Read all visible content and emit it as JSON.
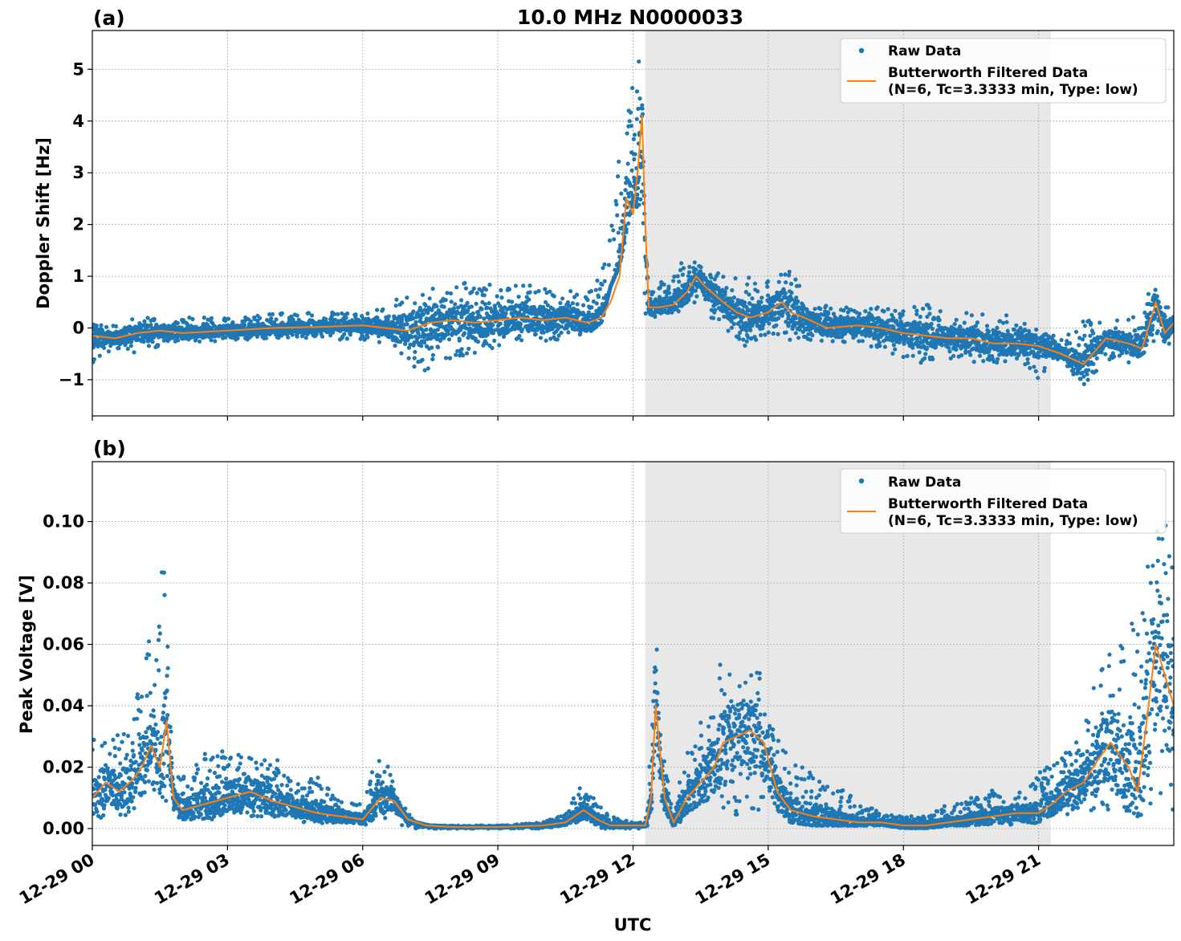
{
  "figure_title": "10.0 MHz N0000033",
  "xlabel": "UTC",
  "colors": {
    "raw": "#1f77b4",
    "filtered": "#ff7f0e",
    "night_shade": "#e8e8e8",
    "grid": "#b0b0b0"
  },
  "chart_data": [
    {
      "type": "scatter",
      "panel_label": "(a)",
      "title": "10.0 MHz N0000033",
      "xlabel": "",
      "ylabel": "Doppler Shift [Hz]",
      "xlim": [
        0,
        24
      ],
      "ylim": [
        -1.7,
        5.75
      ],
      "yticks": [
        -1,
        0,
        1,
        2,
        3,
        4,
        5
      ],
      "ytick_labels": [
        "−1",
        "0",
        "1",
        "2",
        "3",
        "4",
        "5"
      ],
      "x_unit": "hours since 12-29 00 UTC",
      "shaded_region": [
        12.27,
        21.27
      ],
      "grid": true,
      "legend": {
        "placement": "upper right",
        "raw_label": "Raw Data",
        "filtered_label_line1": "Butterworth Filtered Data",
        "filtered_label_line2": "(N=6, Tc=3.3333 min, Type: low)"
      },
      "series": [
        {
          "name": "Raw Data",
          "style": "points",
          "envelope_x": [
            0,
            0.5,
            1,
            1.5,
            2,
            3,
            4,
            5,
            6,
            6.5,
            7,
            7.2,
            7.5,
            8,
            8.5,
            9,
            9.5,
            10,
            10.5,
            11,
            11.3,
            11.5,
            11.7,
            11.9,
            12.0,
            12.1,
            12.2,
            12.27,
            12.35,
            12.5,
            12.8,
            13.0,
            13.3,
            13.6,
            14.0,
            14.5,
            15.0,
            15.5,
            16,
            17,
            18,
            18.5,
            19,
            20,
            20.5,
            21,
            21.5,
            22,
            22.5,
            23,
            23.3,
            23.6,
            24
          ],
          "envelope_lo": [
            -0.7,
            -0.4,
            -0.5,
            -0.35,
            -0.3,
            -0.25,
            -0.2,
            -0.2,
            -0.25,
            -0.3,
            -0.7,
            -0.9,
            -0.8,
            -0.6,
            -0.5,
            -0.4,
            -0.3,
            -0.3,
            -0.2,
            -0.1,
            0.1,
            0.8,
            1.2,
            2.0,
            2.5,
            2.3,
            1.0,
            0.2,
            0.2,
            0.2,
            0.3,
            0.3,
            0.5,
            0.3,
            0.0,
            -0.4,
            -0.1,
            -0.3,
            -0.3,
            -0.3,
            -0.6,
            -0.7,
            -0.6,
            -0.7,
            -0.8,
            -1.0,
            -0.6,
            -1.2,
            -0.6,
            -0.7,
            -0.5,
            -0.3,
            -0.4
          ],
          "envelope_hi": [
            0.1,
            0.1,
            0.2,
            0.2,
            0.2,
            0.2,
            0.3,
            0.3,
            0.3,
            0.4,
            0.75,
            0.8,
            0.75,
            0.85,
            0.9,
            0.9,
            0.85,
            0.8,
            0.7,
            0.75,
            1.0,
            2.0,
            3.5,
            4.2,
            5.0,
            5.3,
            4.8,
            1.4,
            1.0,
            0.8,
            1.0,
            1.3,
            1.4,
            1.2,
            1.0,
            1.0,
            0.9,
            1.2,
            0.5,
            0.4,
            0.4,
            0.5,
            0.3,
            0.3,
            0.2,
            0.0,
            -0.2,
            0.2,
            0.1,
            0.2,
            0.6,
            0.9,
            0.3
          ]
        },
        {
          "name": "Butterworth Filtered Data",
          "style": "line",
          "x": [
            0,
            0.5,
            1,
            1.5,
            2,
            3,
            4,
            5,
            6,
            6.5,
            7,
            7.5,
            8,
            8.5,
            9,
            9.5,
            10,
            10.5,
            11,
            11.3,
            11.5,
            11.7,
            11.85,
            12.0,
            12.1,
            12.2,
            12.27,
            12.35,
            12.6,
            12.9,
            13.2,
            13.4,
            13.6,
            14.0,
            14.3,
            14.6,
            15.0,
            15.3,
            15.5,
            15.8,
            16.3,
            17,
            17.5,
            18,
            18.5,
            19,
            19.5,
            20,
            20.5,
            21,
            21.5,
            22,
            22.5,
            23,
            23.3,
            23.6,
            23.8,
            24
          ],
          "y": [
            -0.15,
            -0.2,
            -0.1,
            -0.05,
            -0.1,
            -0.05,
            0.0,
            0.02,
            0.05,
            0.0,
            -0.05,
            0.1,
            0.15,
            0.1,
            0.15,
            0.2,
            0.15,
            0.2,
            0.1,
            0.2,
            0.5,
            1.0,
            2.5,
            2.2,
            3.0,
            4.1,
            2.0,
            0.4,
            0.4,
            0.45,
            0.7,
            1.0,
            0.8,
            0.5,
            0.3,
            0.2,
            0.3,
            0.5,
            0.3,
            0.2,
            0.0,
            0.05,
            0.0,
            -0.1,
            -0.15,
            -0.2,
            -0.2,
            -0.3,
            -0.3,
            -0.35,
            -0.5,
            -0.7,
            -0.2,
            -0.3,
            -0.4,
            0.5,
            -0.1,
            0.1
          ]
        }
      ]
    },
    {
      "type": "scatter",
      "panel_label": "(b)",
      "title": "",
      "xlabel": "UTC",
      "ylabel": "Peak Voltage [V]",
      "xlim": [
        0,
        24
      ],
      "ylim": [
        -0.0055,
        0.1195
      ],
      "yticks": [
        0.0,
        0.02,
        0.04,
        0.06,
        0.08,
        0.1
      ],
      "ytick_labels": [
        "0.00",
        "0.02",
        "0.04",
        "0.06",
        "0.08",
        "0.10"
      ],
      "xticks": [
        0,
        3,
        6,
        9,
        12,
        15,
        18,
        21
      ],
      "xtick_labels": [
        "12-29 00",
        "12-29 03",
        "12-29 06",
        "12-29 09",
        "12-29 12",
        "12-29 15",
        "12-29 18",
        "12-29 21"
      ],
      "x_unit": "hours since 12-29 00 UTC",
      "shaded_region": [
        12.27,
        21.27
      ],
      "grid": true,
      "legend": {
        "placement": "upper right",
        "raw_label": "Raw Data",
        "filtered_label_line1": "Butterworth Filtered Data",
        "filtered_label_line2": "(N=6, Tc=3.3333 min, Type: low)"
      },
      "series": [
        {
          "name": "Raw Data",
          "style": "points",
          "envelope_x": [
            0,
            0.4,
            0.8,
            1.0,
            1.3,
            1.6,
            1.8,
            2.0,
            2.5,
            3.0,
            3.5,
            4.0,
            4.5,
            5.0,
            5.5,
            6.0,
            6.3,
            6.5,
            6.8,
            7.2,
            7.5,
            8,
            9,
            10,
            10.5,
            10.8,
            11.0,
            11.5,
            12.0,
            12.27,
            12.4,
            12.5,
            12.7,
            12.9,
            13.2,
            13.5,
            13.8,
            14.0,
            14.3,
            14.6,
            14.9,
            15.2,
            15.5,
            16,
            16.5,
            17,
            17.5,
            18,
            18.5,
            19,
            19.5,
            20,
            20.5,
            21,
            21.3,
            21.6,
            22,
            22.3,
            22.6,
            23.0,
            23.2,
            23.5,
            23.8,
            24
          ],
          "envelope_lo": [
            0.003,
            0.004,
            0.004,
            0.008,
            0.012,
            0.01,
            0.004,
            0.003,
            0.003,
            0.003,
            0.003,
            0.002,
            0.002,
            0.002,
            0.001,
            0.001,
            0.002,
            0.003,
            0.001,
            0.0,
            0.0,
            0.0,
            0.0,
            0.0,
            0.001,
            0.001,
            0.0,
            0.0,
            0.0,
            0.0,
            0.002,
            0.004,
            0.001,
            0.0,
            0.002,
            0.004,
            0.003,
            0.005,
            0.004,
            0.006,
            0.005,
            0.003,
            0.002,
            0.001,
            0.001,
            0.001,
            0.001,
            0.0,
            0.0,
            0.001,
            0.001,
            0.001,
            0.001,
            0.002,
            0.003,
            0.004,
            0.005,
            0.006,
            0.004,
            0.003,
            0.004,
            0.006,
            0.008,
            0.004
          ],
          "envelope_hi": [
            0.031,
            0.03,
            0.035,
            0.045,
            0.065,
            0.089,
            0.02,
            0.018,
            0.025,
            0.027,
            0.026,
            0.024,
            0.016,
            0.017,
            0.01,
            0.008,
            0.024,
            0.023,
            0.01,
            0.002,
            0.001,
            0.001,
            0.001,
            0.002,
            0.005,
            0.014,
            0.012,
            0.004,
            0.002,
            0.002,
            0.04,
            0.071,
            0.02,
            0.008,
            0.025,
            0.035,
            0.048,
            0.058,
            0.052,
            0.052,
            0.054,
            0.03,
            0.022,
            0.02,
            0.014,
            0.009,
            0.005,
            0.004,
            0.004,
            0.008,
            0.01,
            0.013,
            0.012,
            0.018,
            0.022,
            0.025,
            0.035,
            0.05,
            0.06,
            0.065,
            0.075,
            0.1,
            0.114,
            0.1
          ]
        },
        {
          "name": "Butterworth Filtered Data",
          "style": "line",
          "x": [
            0,
            0.3,
            0.6,
            0.9,
            1.1,
            1.3,
            1.5,
            1.65,
            1.8,
            2.0,
            2.5,
            3.0,
            3.5,
            4.0,
            4.5,
            5.0,
            5.5,
            6.0,
            6.4,
            6.7,
            7.0,
            7.4,
            8,
            9,
            10,
            10.5,
            10.9,
            11.2,
            11.5,
            12.0,
            12.27,
            12.4,
            12.5,
            12.7,
            12.9,
            13.2,
            13.5,
            13.8,
            14.0,
            14.3,
            14.6,
            14.9,
            15.2,
            15.5,
            16,
            16.5,
            17,
            17.5,
            18,
            18.5,
            19,
            19.5,
            20,
            20.5,
            21,
            21.3,
            21.6,
            22,
            22.3,
            22.6,
            23.0,
            23.2,
            23.4,
            23.6,
            23.8,
            24
          ],
          "y": [
            0.01,
            0.015,
            0.012,
            0.016,
            0.02,
            0.027,
            0.02,
            0.035,
            0.01,
            0.006,
            0.008,
            0.01,
            0.012,
            0.009,
            0.007,
            0.005,
            0.004,
            0.003,
            0.01,
            0.009,
            0.003,
            0.001,
            0.0005,
            0.0005,
            0.001,
            0.002,
            0.006,
            0.003,
            0.001,
            0.001,
            0.001,
            0.01,
            0.04,
            0.01,
            0.002,
            0.01,
            0.015,
            0.02,
            0.028,
            0.03,
            0.032,
            0.028,
            0.012,
            0.006,
            0.004,
            0.003,
            0.002,
            0.002,
            0.001,
            0.001,
            0.002,
            0.003,
            0.004,
            0.005,
            0.005,
            0.008,
            0.012,
            0.015,
            0.022,
            0.028,
            0.02,
            0.012,
            0.035,
            0.06,
            0.05,
            0.04
          ]
        }
      ]
    }
  ]
}
